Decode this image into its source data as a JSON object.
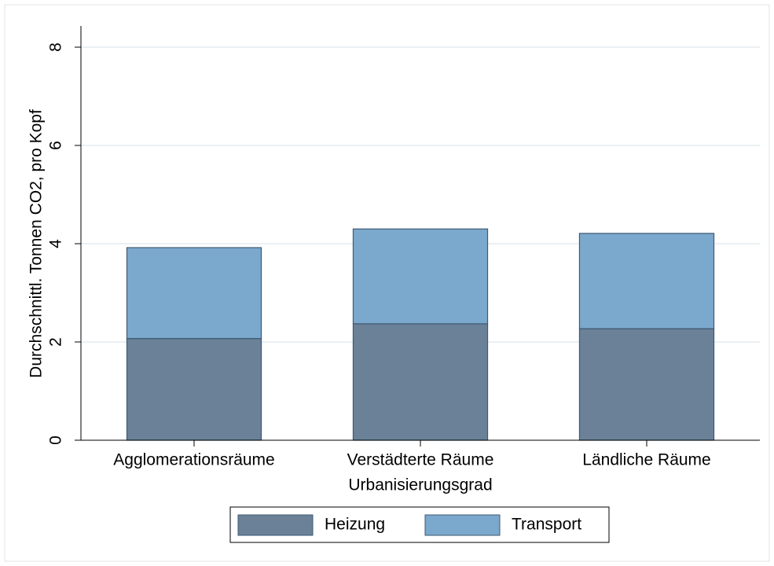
{
  "chart_data": {
    "type": "stacked_bar",
    "categories": [
      "Agglomerationsräume",
      "Verstädterte Räume",
      "Ländliche Räume"
    ],
    "series": [
      {
        "name": "Heizung",
        "color": "#6a8198",
        "values": [
          2.07,
          2.37,
          2.27
        ]
      },
      {
        "name": "Transport",
        "color": "#7ba8cd",
        "values": [
          1.85,
          1.93,
          1.94
        ]
      }
    ],
    "ylim": [
      0,
      8
    ],
    "yticks": [
      0,
      2,
      4,
      6,
      8
    ],
    "grid": true,
    "x_label": "Urbanisierungsgrad",
    "y_label": "Durchschnittl. Tonnen CO2, pro Kopf",
    "legend": "bottom"
  }
}
